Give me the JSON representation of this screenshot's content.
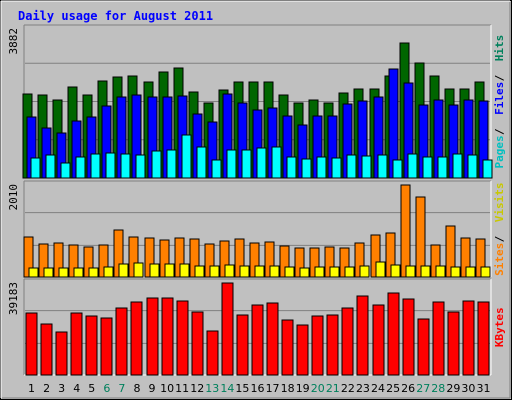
{
  "chart_data": [
    {
      "type": "bar",
      "panel": "hits-files-pages",
      "title": "Daily usage for August 2011",
      "y_max_label": "3882",
      "ylim": [
        0,
        3882
      ],
      "grid": true,
      "side_labels": [
        "Pages",
        "Files",
        "Hits"
      ],
      "categories": [
        "1",
        "2",
        "3",
        "4",
        "5",
        "6",
        "7",
        "8",
        "9",
        "10",
        "11",
        "12",
        "13",
        "14",
        "15",
        "16",
        "17",
        "18",
        "19",
        "20",
        "21",
        "22",
        "23",
        "24",
        "25",
        "26",
        "27",
        "28",
        "29",
        "30",
        "31"
      ],
      "series": [
        {
          "name": "Hits",
          "color": "#006600",
          "values": [
            2180,
            2150,
            2030,
            2370,
            2150,
            2540,
            2620,
            2660,
            2500,
            2770,
            2860,
            2250,
            1950,
            2300,
            2500,
            2500,
            2500,
            2150,
            1950,
            2030,
            1950,
            2220,
            2310,
            2310,
            2660,
            3520,
            3000,
            2660,
            2310,
            2310,
            2500
          ]
        },
        {
          "name": "Files",
          "color": "#0000ff",
          "values": [
            1590,
            1310,
            1160,
            1480,
            1590,
            1870,
            2100,
            2170,
            2100,
            2100,
            2140,
            1680,
            1460,
            2180,
            1950,
            1760,
            1830,
            1610,
            1390,
            1610,
            1620,
            1920,
            2000,
            2110,
            2840,
            2470,
            1910,
            2030,
            1910,
            2030,
            2000
          ]
        },
        {
          "name": "Pages",
          "color": "#00ffff",
          "values": [
            520,
            590,
            380,
            550,
            620,
            640,
            620,
            590,
            700,
            720,
            1120,
            820,
            480,
            730,
            720,
            770,
            820,
            560,
            490,
            540,
            520,
            610,
            570,
            590,
            460,
            620,
            540,
            560,
            630,
            610,
            470
          ]
        }
      ]
    },
    {
      "type": "bar",
      "panel": "visits-sites",
      "y_max_label": "2010",
      "ylim": [
        0,
        2010
      ],
      "grid": true,
      "side_labels": [
        "Sites",
        "Visits"
      ],
      "categories": [
        "1",
        "2",
        "3",
        "4",
        "5",
        "6",
        "7",
        "8",
        "9",
        "10",
        "11",
        "12",
        "13",
        "14",
        "15",
        "16",
        "17",
        "18",
        "19",
        "20",
        "21",
        "22",
        "23",
        "24",
        "25",
        "26",
        "27",
        "28",
        "29",
        "30",
        "31"
      ],
      "series": [
        {
          "name": "Visits",
          "color": "#ff8000",
          "values": [
            880,
            730,
            750,
            690,
            660,
            700,
            1030,
            880,
            860,
            800,
            860,
            830,
            730,
            780,
            840,
            750,
            760,
            670,
            640,
            630,
            660,
            640,
            750,
            920,
            970,
            2010,
            1740,
            700,
            1110,
            860,
            830
          ]
        },
        {
          "name": "Sites",
          "color": "#ffff00",
          "values": [
            200,
            200,
            200,
            200,
            200,
            220,
            280,
            300,
            290,
            280,
            280,
            250,
            250,
            270,
            250,
            250,
            240,
            210,
            190,
            210,
            210,
            220,
            250,
            330,
            260,
            230,
            230,
            230,
            220,
            210,
            220
          ]
        }
      ]
    },
    {
      "type": "bar",
      "panel": "kbytes",
      "y_max_label": "39183",
      "ylim": [
        0,
        39183
      ],
      "grid": true,
      "side_labels": [
        "KBytes"
      ],
      "categories": [
        "1",
        "2",
        "3",
        "4",
        "5",
        "6",
        "7",
        "8",
        "9",
        "10",
        "11",
        "12",
        "13",
        "14",
        "15",
        "16",
        "17",
        "18",
        "19",
        "20",
        "21",
        "22",
        "23",
        "24",
        "25",
        "26",
        "27",
        "28",
        "29",
        "30",
        "31"
      ],
      "series": [
        {
          "name": "KBytes",
          "color": "#ff0000",
          "values": [
            26500,
            21900,
            18400,
            26500,
            25000,
            24200,
            28400,
            31300,
            32600,
            32700,
            31500,
            26900,
            18700,
            39200,
            25600,
            29800,
            30500,
            23600,
            21300,
            25300,
            25600,
            28400,
            33600,
            30000,
            34800,
            32200,
            23800,
            31300,
            26800,
            31500,
            31300
          ]
        }
      ]
    }
  ],
  "colors": {
    "frame": "#c0c0c0",
    "panel_bg": "#c0c0c0",
    "title": "#0000ff",
    "hits_label": "#00805c",
    "files_label": "#0000ff",
    "pages_label": "#00c0c0",
    "visits_label": "#ff8000",
    "sites_label": "#c8c800",
    "kbytes_label": "#ff0000",
    "weekend_day": "#00805c",
    "weekday_day": "#000000"
  },
  "weekend_days": [
    "6",
    "7",
    "13",
    "14",
    "20",
    "21",
    "27",
    "28"
  ]
}
